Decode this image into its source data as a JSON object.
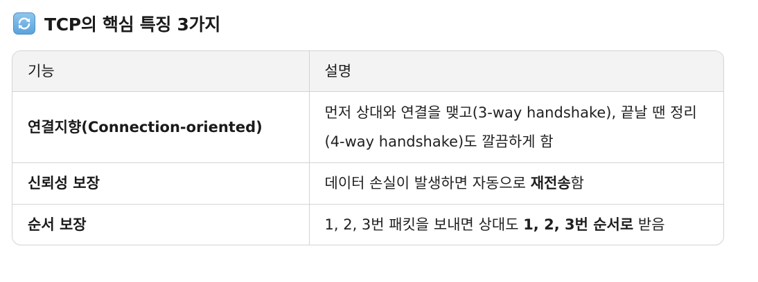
{
  "heading": {
    "icon": "counterclockwise-arrows-icon",
    "title": "TCP의 핵심 특징 3가지"
  },
  "table": {
    "columns": [
      "기능",
      "설명"
    ],
    "rows": [
      {
        "feature": "연결지향(Connection-oriented)",
        "description": "먼저 상대와 연결을 맺고(3-way handshake), 끝날 땐 정리(4-way handshake)도 깔끔하게 함"
      },
      {
        "feature": "신뢰성 보장",
        "description_parts": [
          "데이터 손실이 발생하면 자동으로 ",
          "재전송",
          "함"
        ]
      },
      {
        "feature": "순서 보장",
        "description_parts": [
          "1, 2, 3번 패킷을 보내면 상대도 ",
          "1, 2, 3번 순서로",
          " 받음"
        ]
      }
    ]
  }
}
